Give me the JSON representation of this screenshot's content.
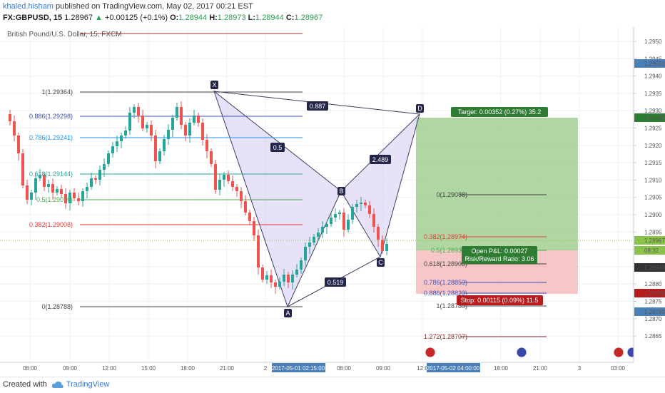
{
  "header": {
    "author": "khaled.hisham",
    "published_text": "published on TradingView.com, May 02, 2017 00:21 EST",
    "symbol": "FX:GBPUSD, 15",
    "last": "1.28967",
    "change": "+0.00125 (+0.1%)",
    "o_label": "O:",
    "o_val": "1.28944",
    "h_label": "H:",
    "h_val": "1.28973",
    "l_label": "L:",
    "l_val": "1.28944",
    "c_label": "C:",
    "c_val": "1.28967",
    "up_arrow": "▲"
  },
  "legend": {
    "series_name": "British Pound/U.S. Dollar, 15, FXCM"
  },
  "price_axis": {
    "ticks": [
      "1.2950",
      "1.2945",
      "1.2940",
      "1.2935",
      "1.2930",
      "1.2925",
      "1.2920",
      "1.2915",
      "1.2910",
      "1.2905",
      "1.2900",
      "1.2895",
      "1.2890",
      "1.2885",
      "1.2880",
      "1.2875",
      "1.2870",
      "1.2865"
    ],
    "markers": [
      {
        "text": "1.29653",
        "color": "#4a7fb8"
      },
      {
        "text": "1.29292",
        "color": "#2e7d32"
      },
      {
        "text": "1.28967",
        "color": "#8bc34a"
      },
      {
        "text": "08:32",
        "color": "#8bc34a"
      },
      {
        "text": "1.28940",
        "color": "#333333"
      },
      {
        "text": "1.28825",
        "color": "#b71c1c"
      },
      {
        "text": "1.28793",
        "color": "#4a7fb8"
      }
    ]
  },
  "time_axis": {
    "ticks": [
      "06:00",
      "09:00",
      "12:00",
      "15:00",
      "18:00",
      "21:00",
      "2",
      "06:00",
      "09:00",
      "12:0",
      "18:00",
      "21:00",
      "3",
      "03:00"
    ],
    "highlight_start": "2017-05-01 02:15:00",
    "highlight_end": "2017-05-02 04:00:00"
  },
  "fib_left": [
    {
      "label": "1(1.29364)",
      "color": "#444444"
    },
    {
      "label": "0.886(1.29298)",
      "color": "#3f51b5"
    },
    {
      "label": "0.786(1.29241)",
      "color": "#2196f3"
    },
    {
      "label": "0.618(1.29144)",
      "color": "#26a69a"
    },
    {
      "label": "0.5(1.29076)",
      "color": "#4caf50"
    },
    {
      "label": "0.382(1.29008)",
      "color": "#e53935"
    },
    {
      "label": "0(1.28788)",
      "color": "#444444"
    }
  ],
  "fib_right": [
    {
      "label": "0(1.29088)",
      "color": "#444444"
    },
    {
      "label": "0.382(1.28974)",
      "color": "#e53935"
    },
    {
      "label": "0.5(1.28939)",
      "color": "#4caf50"
    },
    {
      "label": "0.618(1.28903)",
      "color": "#444444"
    },
    {
      "label": "0.786(1.28853)",
      "color": "#3f51b5"
    },
    {
      "label": "0.886(1.28823)",
      "color": "#3f51b5"
    },
    {
      "label": "1(1.28789)",
      "color": "#444444"
    },
    {
      "label": "1.272(1.28707)",
      "color": "#8d2a2a"
    }
  ],
  "pattern": {
    "points": {
      "X": "X",
      "A": "A",
      "B": "B",
      "C": "C",
      "D": "D"
    },
    "ratios": {
      "xb": "0.5",
      "xd": "0.887",
      "ac": "0.519",
      "bd": "2.489"
    }
  },
  "position": {
    "target": "Target: 0.00352 (0.27%) 35.2",
    "open_pnl": "Open P&L: 0.00027",
    "rr": "Risk/Reward Ratio: 3.06",
    "stop": "Stop: 0.00115 (0.09%) 11.5"
  },
  "footer": {
    "created_with": "Created with",
    "brand": "TradingView"
  },
  "colors": {
    "up": "#26a69a",
    "down": "#ef5350",
    "profit": "#81b86a",
    "loss": "#f2a7a7",
    "pattern": "#ccc4ec"
  }
}
